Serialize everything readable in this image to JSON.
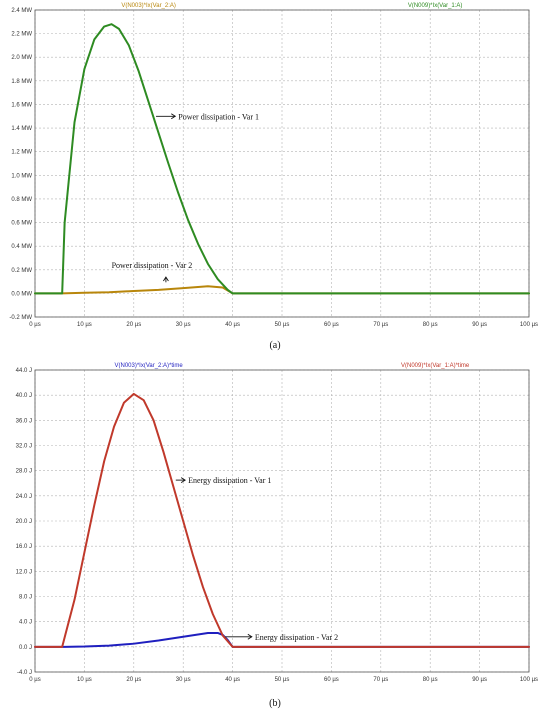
{
  "chart_data": [
    {
      "id": "a",
      "type": "line",
      "caption": "(a)",
      "x_ticks": [
        "0 µs",
        "10 µs",
        "20 µs",
        "30 µs",
        "40 µs",
        "50 µs",
        "60 µs",
        "70 µs",
        "80 µs",
        "90 µs",
        "100 µs"
      ],
      "y_ticks": [
        "-0.2 MW",
        "0.0 MW",
        "0.2 MW",
        "0.4 MW",
        "0.6 MW",
        "0.8 MW",
        "1.0 MW",
        "1.2 MW",
        "1.4 MW",
        "1.6 MW",
        "1.8 MW",
        "2.0 MW",
        "2.2 MW",
        "2.4 MW"
      ],
      "xlim": [
        0,
        100
      ],
      "ylim": [
        -0.2,
        2.4
      ],
      "x_unit": "µs",
      "y_unit": "MW",
      "grid": true,
      "series": [
        {
          "name": "V(N003)*Ix(Var_2:A)",
          "color": "#b8860b",
          "x": [
            0,
            5.5,
            10,
            15,
            20,
            25,
            30,
            35,
            38,
            40,
            100
          ],
          "y": [
            0,
            0,
            0.005,
            0.01,
            0.02,
            0.03,
            0.045,
            0.06,
            0.05,
            0,
            0
          ]
        },
        {
          "name": "V(N009)*Ix(Var_1:A)",
          "color": "#2e8b22",
          "x": [
            0,
            5.5,
            6,
            8,
            10,
            12,
            14,
            15.5,
            17,
            19,
            21,
            23,
            25,
            27,
            29,
            31,
            33,
            35,
            37,
            39,
            40,
            100
          ],
          "y": [
            0,
            0,
            0.6,
            1.45,
            1.9,
            2.15,
            2.26,
            2.28,
            2.24,
            2.1,
            1.88,
            1.62,
            1.36,
            1.1,
            0.85,
            0.62,
            0.42,
            0.25,
            0.12,
            0.03,
            0,
            0
          ]
        }
      ],
      "annotations": [
        {
          "text": "Power dissipation - Var 1",
          "x": 29,
          "y": 1.5,
          "arrow_to": [
            24.5,
            1.5
          ],
          "arrow": "left"
        },
        {
          "text": "Power dissipation - Var 2",
          "x": 15.5,
          "y": 0.24,
          "arrow_to": [
            26.5,
            0.06
          ],
          "arrow": "up"
        }
      ]
    },
    {
      "id": "b",
      "type": "line",
      "caption": "(b)",
      "x_ticks": [
        "0 µs",
        "10 µs",
        "20 µs",
        "30 µs",
        "40 µs",
        "50 µs",
        "60 µs",
        "70 µs",
        "80 µs",
        "90 µs",
        "100 µs"
      ],
      "y_ticks": [
        "-4.0 J",
        "0.0 J",
        "4.0 J",
        "8.0 J",
        "12.0 J",
        "16.0 J",
        "20.0 J",
        "24.0 J",
        "28.0 J",
        "32.0 J",
        "36.0 J",
        "40.0 J",
        "44.0 J"
      ],
      "xlim": [
        0,
        100
      ],
      "ylim": [
        -4,
        44
      ],
      "x_unit": "µs",
      "y_unit": "J",
      "grid": true,
      "series": [
        {
          "name": "V(N003)*Ix(Var_2:A)*time",
          "color": "#1f1fbf",
          "x": [
            0,
            6,
            10,
            15,
            20,
            25,
            30,
            35,
            37,
            38,
            39,
            40,
            100
          ],
          "y": [
            0,
            0,
            0.05,
            0.2,
            0.5,
            1.0,
            1.6,
            2.2,
            2.2,
            1.9,
            1.1,
            0,
            0
          ]
        },
        {
          "name": "V(N009)*Ix(Var_1:A)*time",
          "color": "#c0392b",
          "x": [
            0,
            5.5,
            8,
            10,
            12,
            14,
            16,
            18,
            20,
            22,
            24,
            26,
            28,
            30,
            32,
            34,
            36,
            38,
            40,
            100
          ],
          "y": [
            0,
            0,
            7.5,
            15,
            22.5,
            29.5,
            35,
            38.8,
            40.2,
            39.2,
            36,
            31,
            25.5,
            20,
            14.5,
            9.5,
            5.2,
            1.8,
            0,
            0
          ]
        }
      ],
      "annotations": [
        {
          "text": "Energy dissipation - Var 1",
          "x": 31,
          "y": 26.5,
          "arrow_to": [
            28.5,
            26.5
          ],
          "arrow": "left"
        },
        {
          "text": "Energy dissipation - Var 2",
          "x": 44.5,
          "y": 1.6,
          "arrow_to": [
            38.5,
            1.6
          ],
          "arrow": "left"
        }
      ]
    }
  ]
}
